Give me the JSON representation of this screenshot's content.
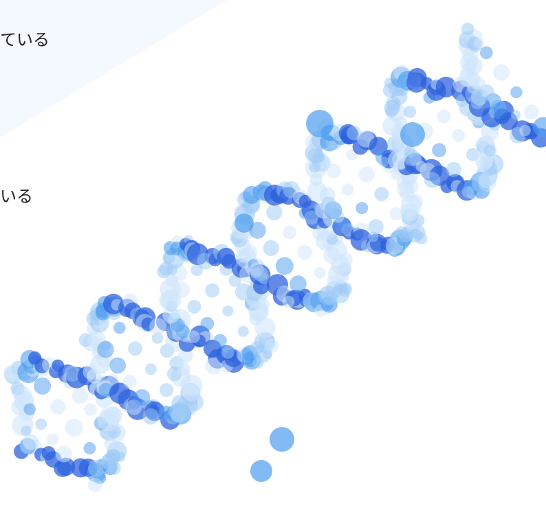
{
  "text_fragments": {
    "line1": "ている",
    "line2": "いる"
  },
  "colors": {
    "background": "#ffffff",
    "wedge": "#f4f8ff",
    "dark_dot": "#2e63de",
    "mid_dot": "#4d9cf0",
    "light_dot": "#9ecaf5",
    "pale_dot": "#cfe5fb"
  },
  "illustration": {
    "name": "dna-double-helix-dots"
  }
}
